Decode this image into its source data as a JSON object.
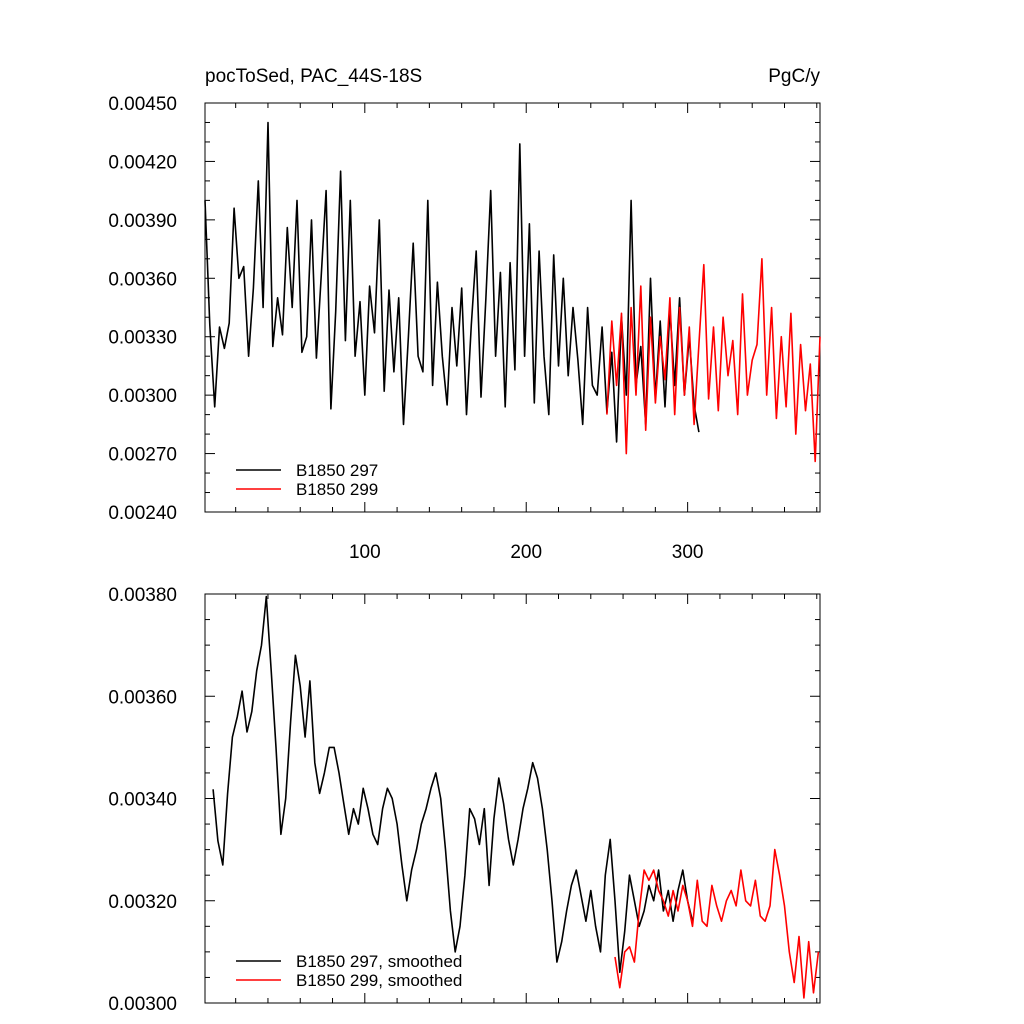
{
  "figure": {
    "title_left": "pocToSed, PAC_44S-18S",
    "title_right": "PgC/y"
  },
  "colors": {
    "series1": "#000000",
    "series2": "#ff0000",
    "axis": "#000000"
  },
  "chart_data": [
    {
      "type": "line",
      "xlim": [
        1,
        382
      ],
      "ylim": [
        0.0024,
        0.0045
      ],
      "yticks": [
        "0.00240",
        "0.00270",
        "0.00300",
        "0.00330",
        "0.00360",
        "0.00390",
        "0.00420",
        "0.00450"
      ],
      "xticks": [
        100,
        200,
        300
      ],
      "legend_position": "bottom-left",
      "series": [
        {
          "name": "B1850 297",
          "color": "#000000",
          "x_start": 1,
          "x_end": 308,
          "x": [
            1,
            4,
            7,
            10,
            13,
            16,
            19,
            22,
            25,
            28,
            31,
            34,
            37,
            40,
            43,
            46,
            49,
            52,
            55,
            58,
            61,
            64,
            67,
            70,
            73,
            76,
            79,
            82,
            85,
            88,
            91,
            94,
            97,
            100,
            103,
            106,
            109,
            112,
            115,
            118,
            121,
            124,
            127,
            130,
            133,
            136,
            139,
            142,
            145,
            148,
            151,
            154,
            157,
            160,
            163,
            166,
            169,
            172,
            175,
            178,
            181,
            184,
            187,
            190,
            193,
            196,
            199,
            202,
            205,
            208,
            211,
            214,
            217,
            220,
            223,
            226,
            229,
            232,
            235,
            238,
            241,
            244,
            247,
            250,
            253,
            256,
            259,
            262,
            265,
            268,
            271,
            274,
            277,
            280,
            283,
            286,
            289,
            292,
            295,
            298,
            301,
            304,
            307
          ],
          "y": [
            0.004,
            0.00336,
            0.00294,
            0.00335,
            0.00324,
            0.00337,
            0.00396,
            0.0036,
            0.00366,
            0.0032,
            0.00355,
            0.0041,
            0.00345,
            0.0044,
            0.00325,
            0.0035,
            0.00331,
            0.00386,
            0.00345,
            0.004,
            0.00322,
            0.0033,
            0.0039,
            0.00319,
            0.00361,
            0.00405,
            0.00293,
            0.00343,
            0.00415,
            0.00328,
            0.004,
            0.0032,
            0.00348,
            0.003,
            0.00356,
            0.00332,
            0.0039,
            0.00302,
            0.00354,
            0.00312,
            0.0035,
            0.00285,
            0.0033,
            0.00378,
            0.0032,
            0.00312,
            0.004,
            0.00305,
            0.00358,
            0.0032,
            0.00295,
            0.00345,
            0.00315,
            0.00355,
            0.0029,
            0.00336,
            0.00374,
            0.00299,
            0.0035,
            0.00405,
            0.0032,
            0.00363,
            0.00294,
            0.00368,
            0.00313,
            0.00429,
            0.0032,
            0.00388,
            0.00296,
            0.00374,
            0.0032,
            0.0029,
            0.00372,
            0.00315,
            0.0036,
            0.0031,
            0.00345,
            0.00318,
            0.00285,
            0.00345,
            0.00305,
            0.003,
            0.00335,
            0.00291,
            0.00322,
            0.00276,
            0.0034,
            0.003,
            0.004,
            0.00305,
            0.00325,
            0.00285,
            0.0036,
            0.00298,
            0.00338,
            0.00294,
            0.00344,
            0.00305,
            0.0035,
            0.003,
            0.0033,
            0.00295,
            0.00281
          ]
        },
        {
          "name": "B1850 299",
          "color": "#ff0000",
          "x_start": 250,
          "x_end": 382,
          "x": [
            250,
            253,
            256,
            259,
            262,
            265,
            268,
            271,
            274,
            277,
            280,
            283,
            286,
            289,
            292,
            295,
            298,
            301,
            304,
            307,
            310,
            313,
            316,
            319,
            322,
            325,
            328,
            331,
            334,
            337,
            340,
            343,
            346,
            349,
            352,
            355,
            358,
            361,
            364,
            367,
            370,
            373,
            376,
            379,
            382
          ],
          "y": [
            0.0029,
            0.00338,
            0.00305,
            0.00342,
            0.0027,
            0.00345,
            0.003,
            0.00356,
            0.00282,
            0.0034,
            0.00296,
            0.0033,
            0.00308,
            0.0035,
            0.0029,
            0.00345,
            0.003,
            0.00335,
            0.00285,
            0.00326,
            0.00367,
            0.00298,
            0.00335,
            0.00292,
            0.0034,
            0.0031,
            0.00328,
            0.0029,
            0.00352,
            0.003,
            0.00318,
            0.00326,
            0.0037,
            0.003,
            0.00345,
            0.00288,
            0.0033,
            0.00294,
            0.00342,
            0.0028,
            0.00326,
            0.00292,
            0.00316,
            0.00266,
            0.0033
          ]
        }
      ]
    },
    {
      "type": "line",
      "xlim": [
        1,
        382
      ],
      "ylim": [
        0.003,
        0.0038
      ],
      "yticks": [
        "0.00300",
        "0.00320",
        "0.00340",
        "0.00360",
        "0.00380"
      ],
      "legend_position": "bottom-left",
      "series": [
        {
          "name": "B1850 297, smoothed",
          "color": "#000000",
          "x": [
            6,
            9,
            12,
            15,
            18,
            21,
            24,
            27,
            30,
            33,
            36,
            39,
            42,
            45,
            48,
            51,
            54,
            57,
            60,
            63,
            66,
            69,
            72,
            75,
            78,
            81,
            84,
            87,
            90,
            93,
            96,
            99,
            102,
            105,
            108,
            111,
            114,
            117,
            120,
            123,
            126,
            129,
            132,
            135,
            138,
            141,
            144,
            147,
            150,
            153,
            156,
            159,
            162,
            165,
            168,
            171,
            174,
            177,
            180,
            183,
            186,
            189,
            192,
            195,
            198,
            201,
            204,
            207,
            210,
            213,
            216,
            219,
            222,
            225,
            228,
            231,
            234,
            237,
            240,
            243,
            246,
            249,
            252,
            255,
            258,
            261,
            264,
            267,
            270,
            273,
            276,
            279,
            282,
            285,
            288,
            291,
            294,
            297,
            300,
            303
          ],
          "y": [
            0.003418,
            0.003317,
            0.00327,
            0.00341,
            0.00352,
            0.00356,
            0.00361,
            0.00353,
            0.00357,
            0.00365,
            0.0037,
            0.003795,
            0.00365,
            0.0035,
            0.00333,
            0.0034,
            0.00355,
            0.00368,
            0.00362,
            0.00352,
            0.00363,
            0.00347,
            0.00341,
            0.00345,
            0.0035,
            0.0035,
            0.00345,
            0.00339,
            0.00333,
            0.00338,
            0.00335,
            0.00342,
            0.00338,
            0.00333,
            0.00331,
            0.00338,
            0.00342,
            0.0034,
            0.00335,
            0.00327,
            0.0032,
            0.00326,
            0.0033,
            0.00335,
            0.00338,
            0.00342,
            0.00345,
            0.0034,
            0.0033,
            0.00318,
            0.0031,
            0.00315,
            0.00325,
            0.00338,
            0.00336,
            0.00331,
            0.00338,
            0.00323,
            0.00336,
            0.00344,
            0.00339,
            0.00332,
            0.00327,
            0.00332,
            0.00338,
            0.00342,
            0.00347,
            0.00344,
            0.00338,
            0.0033,
            0.0032,
            0.00308,
            0.00312,
            0.00318,
            0.00323,
            0.00326,
            0.00321,
            0.00316,
            0.00322,
            0.00315,
            0.0031,
            0.00325,
            0.00332,
            0.0032,
            0.00306,
            0.00314,
            0.00325,
            0.0032,
            0.00315,
            0.00318,
            0.00323,
            0.0032,
            0.00326,
            0.00318,
            0.00322,
            0.00316,
            0.00322,
            0.00326,
            0.0032,
            0.00316
          ]
        },
        {
          "name": "B1850 299, smoothed",
          "color": "#ff0000",
          "x": [
            255,
            258,
            261,
            264,
            267,
            270,
            273,
            276,
            279,
            282,
            285,
            288,
            291,
            294,
            297,
            300,
            303,
            306,
            309,
            312,
            315,
            318,
            321,
            324,
            327,
            330,
            333,
            336,
            339,
            342,
            345,
            348,
            351,
            354,
            357,
            360,
            363,
            366,
            369,
            372,
            375,
            378,
            381
          ],
          "y": [
            0.00309,
            0.00303,
            0.0031,
            0.00311,
            0.00308,
            0.00318,
            0.00326,
            0.00324,
            0.00326,
            0.00322,
            0.0032,
            0.00317,
            0.00322,
            0.00318,
            0.00323,
            0.0032,
            0.00315,
            0.00324,
            0.00316,
            0.00315,
            0.00323,
            0.00319,
            0.00316,
            0.0032,
            0.00322,
            0.00319,
            0.00326,
            0.0032,
            0.00319,
            0.00324,
            0.00317,
            0.00316,
            0.00319,
            0.0033,
            0.00325,
            0.00319,
            0.0031,
            0.00304,
            0.00313,
            0.00301,
            0.00312,
            0.00302,
            0.0031
          ]
        }
      ]
    }
  ]
}
